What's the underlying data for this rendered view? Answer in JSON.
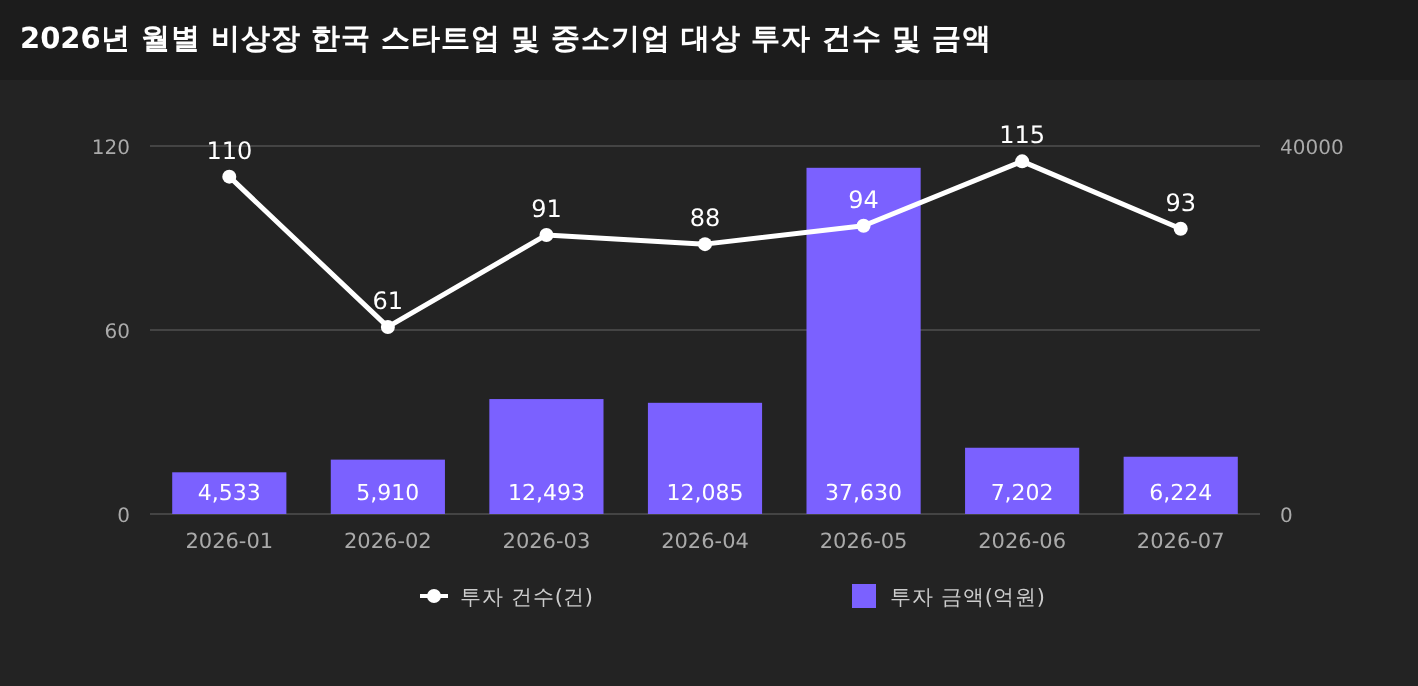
{
  "chart_data": {
    "type": "bar",
    "title": "2026년 월별 비상장 한국 스타트업 및 중소기업 대상 투자 건수 및 금액",
    "categories": [
      "2026-01",
      "2026-02",
      "2026-03",
      "2026-04",
      "2026-05",
      "2026-06",
      "2026-07"
    ],
    "series": [
      {
        "name": "투자 건수(건)",
        "type": "line",
        "axis": "y",
        "color": "#ffffff",
        "marker": "circle",
        "values": [
          110,
          61,
          91,
          88,
          94,
          115,
          93
        ],
        "value_labels": [
          "110",
          "61",
          "91",
          "88",
          "94",
          "115",
          "93"
        ]
      },
      {
        "name": "투자 금액(억원)",
        "axis": "y2",
        "color": "#7b61ff",
        "values": [
          4533,
          5910,
          12493,
          12085,
          37630,
          7202,
          6224
        ],
        "value_labels": [
          "4,533",
          "5,910",
          "12,493",
          "12,085",
          "37,630",
          "7,202",
          "6,224"
        ]
      }
    ],
    "ylim": [
      0,
      120
    ],
    "yticks": [
      0,
      60,
      120
    ],
    "y2lim": [
      0,
      40000
    ],
    "y2ticks": [
      0,
      40000
    ],
    "grid": "y",
    "legend": "bottom"
  }
}
